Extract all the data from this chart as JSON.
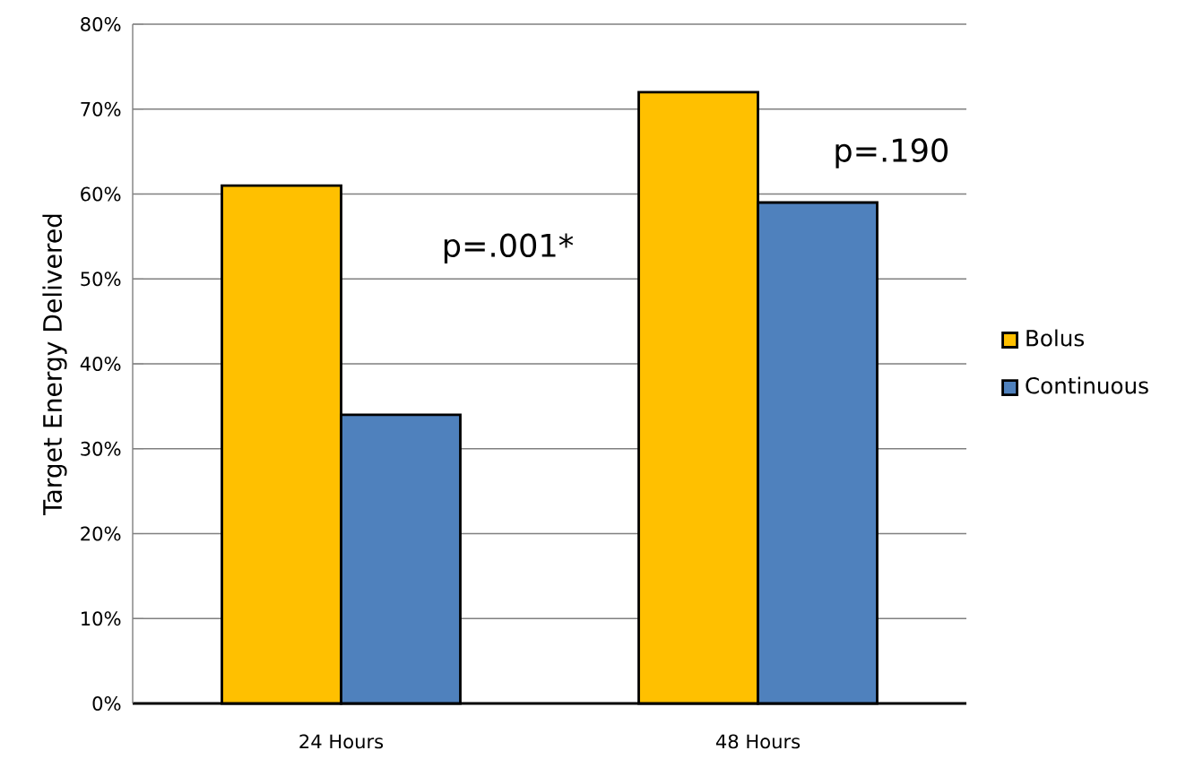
{
  "chart_data": {
    "type": "bar",
    "ylabel": "Target Energy Delivered",
    "categories": [
      "24 Hours",
      "48 Hours"
    ],
    "series": [
      {
        "name": "Bolus",
        "color": "#ffc000",
        "values": [
          61,
          72
        ]
      },
      {
        "name": "Continuous",
        "color": "#4f81bd",
        "values": [
          34,
          59
        ]
      }
    ],
    "ylim": [
      0,
      80
    ],
    "yticks": [
      {
        "value": 0,
        "label": "0%"
      },
      {
        "value": 10,
        "label": "10%"
      },
      {
        "value": 20,
        "label": "20%"
      },
      {
        "value": 30,
        "label": "30%"
      },
      {
        "value": 40,
        "label": "40%"
      },
      {
        "value": 50,
        "label": "50%"
      },
      {
        "value": 60,
        "label": "60%"
      },
      {
        "value": 70,
        "label": "70%"
      },
      {
        "value": 80,
        "label": "80%"
      }
    ],
    "grid": "y",
    "legend": "right",
    "annotations": [
      "p=.001*",
      "p=.190"
    ]
  }
}
